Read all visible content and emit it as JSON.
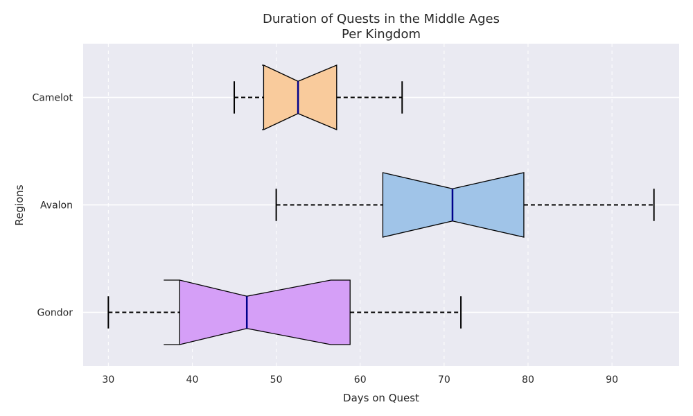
{
  "chart_data": {
    "type": "box",
    "orientation": "horizontal",
    "notched": true,
    "title": "Duration of Quests in the Middle Ages",
    "subtitle": "Per Kingdom",
    "xlabel": "Days on Quest",
    "ylabel": "Regions",
    "xlim": [
      27,
      98
    ],
    "xticks": [
      30,
      40,
      50,
      60,
      70,
      80,
      90
    ],
    "grid": {
      "x": "dashed",
      "y": "solid"
    },
    "background_color": "#eaeaf2",
    "median_color": "#00008b",
    "categories": [
      "Gondor",
      "Avalon",
      "Camelot"
    ],
    "boxes": [
      {
        "name": "Gondor",
        "whisker_low": 30,
        "q1": 38.5,
        "notch_low": 36.6,
        "median": 46.5,
        "notch_high": 56.5,
        "q3": 58.8,
        "whisker_high": 72,
        "color": "#d59ff7"
      },
      {
        "name": "Avalon",
        "whisker_low": 50,
        "q1": 62.7,
        "notch_low": 62.7,
        "median": 71,
        "notch_high": 79.5,
        "q3": 79.5,
        "whisker_high": 95,
        "color": "#a0c4e8"
      },
      {
        "name": "Camelot",
        "whisker_low": 45,
        "q1": 48.5,
        "notch_low": 48.3,
        "median": 52.6,
        "notch_high": 57.2,
        "q3": 57.2,
        "whisker_high": 65,
        "color": "#f9cb9c"
      }
    ]
  }
}
